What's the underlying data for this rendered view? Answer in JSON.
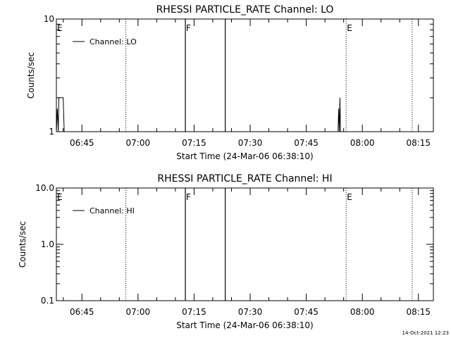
{
  "footer": {
    "timestamp": "14-Oct-2021 12:23"
  },
  "chart_data": [
    {
      "type": "line",
      "title": "RHESSI PARTICLE_RATE Channel: LO",
      "xlabel": "Start Time (24-Mar-06 06:38:10)",
      "ylabel": "Counts/sec",
      "x_unit": "time of day (24-Mar-06)",
      "xlim": [
        "06:38:10",
        "08:19:00"
      ],
      "x_ticks": [
        "06:45",
        "07:00",
        "07:15",
        "07:30",
        "07:45",
        "08:00",
        "08:15"
      ],
      "y_scale": "log",
      "ylim": [
        1,
        10
      ],
      "y_ticks": [
        "1",
        "10"
      ],
      "legend": {
        "position": "top-left",
        "entries": [
          "Channel: LO"
        ]
      },
      "series": [
        {
          "name": "Channel: LO",
          "points": [
            [
              "06:38:10",
              1
            ],
            [
              "06:38:25",
              1.6
            ],
            [
              "06:38:40",
              1
            ],
            [
              "06:38:50",
              2
            ],
            [
              "06:40:00",
              2
            ],
            [
              "06:40:15",
              1
            ],
            [
              "06:41:00",
              1
            ],
            [
              "07:53:30",
              1
            ],
            [
              "07:53:40",
              1.6
            ],
            [
              "07:53:50",
              1
            ],
            [
              "07:54:00",
              2
            ],
            [
              "07:54:10",
              1
            ]
          ]
        }
      ],
      "markers": {
        "dotted_lines": [
          "06:56:45",
          "07:55:40",
          "08:13:20"
        ],
        "solid_lines": [
          "07:12:40",
          "07:23:20"
        ],
        "labels": [
          {
            "text": "E",
            "x": "06:38:10"
          },
          {
            "text": "F",
            "x": "07:12:40"
          },
          {
            "text": "E",
            "x": "07:55:40"
          }
        ]
      }
    },
    {
      "type": "line",
      "title": "RHESSI PARTICLE_RATE Channel: HI",
      "xlabel": "Start Time (24-Mar-06 06:38:10)",
      "ylabel": "Counts/sec",
      "x_unit": "time of day (24-Mar-06)",
      "xlim": [
        "06:38:10",
        "08:19:00"
      ],
      "x_ticks": [
        "06:45",
        "07:00",
        "07:15",
        "07:30",
        "07:45",
        "08:00",
        "08:15"
      ],
      "y_scale": "log",
      "ylim": [
        0.1,
        10
      ],
      "y_ticks": [
        "0.1",
        "1.0",
        "10.0"
      ],
      "legend": {
        "position": "top-left",
        "entries": [
          "Channel: HI"
        ]
      },
      "series": [
        {
          "name": "Channel: HI",
          "points": []
        }
      ],
      "markers": {
        "dotted_lines": [
          "06:56:45",
          "07:55:40",
          "08:13:20"
        ],
        "solid_lines": [
          "07:12:40",
          "07:23:20"
        ],
        "labels": [
          {
            "text": "E",
            "x": "06:38:10"
          },
          {
            "text": "F",
            "x": "07:12:40"
          },
          {
            "text": "E",
            "x": "07:55:40"
          }
        ]
      }
    }
  ]
}
